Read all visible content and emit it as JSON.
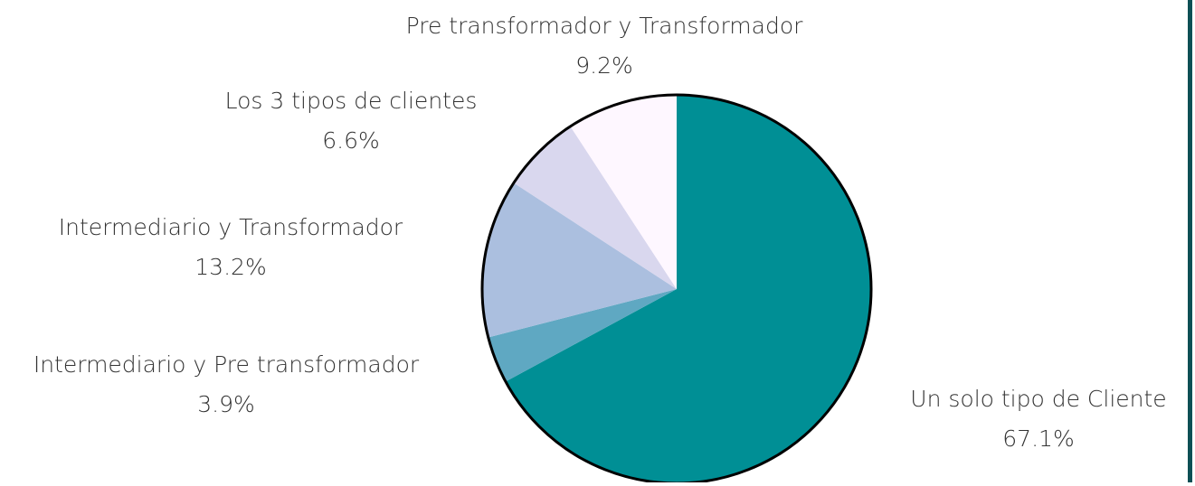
{
  "chart_data": {
    "type": "pie",
    "categories": [
      "Un solo tipo de Cliente",
      "Intermediario y Pre transformador",
      "Intermediario y Transformador",
      "Los 3 tipos de clientes",
      "Pre transformador y Transformador"
    ],
    "values": [
      67.1,
      3.9,
      13.2,
      6.6,
      9.2
    ],
    "value_labels": [
      "67.1%",
      "3.9%",
      "13.2%",
      "6.6%",
      "9.2%"
    ],
    "colors": [
      "#008f95",
      "#5fa8c2",
      "#abbfdf",
      "#d9d7ee",
      "#fef7ff"
    ]
  }
}
